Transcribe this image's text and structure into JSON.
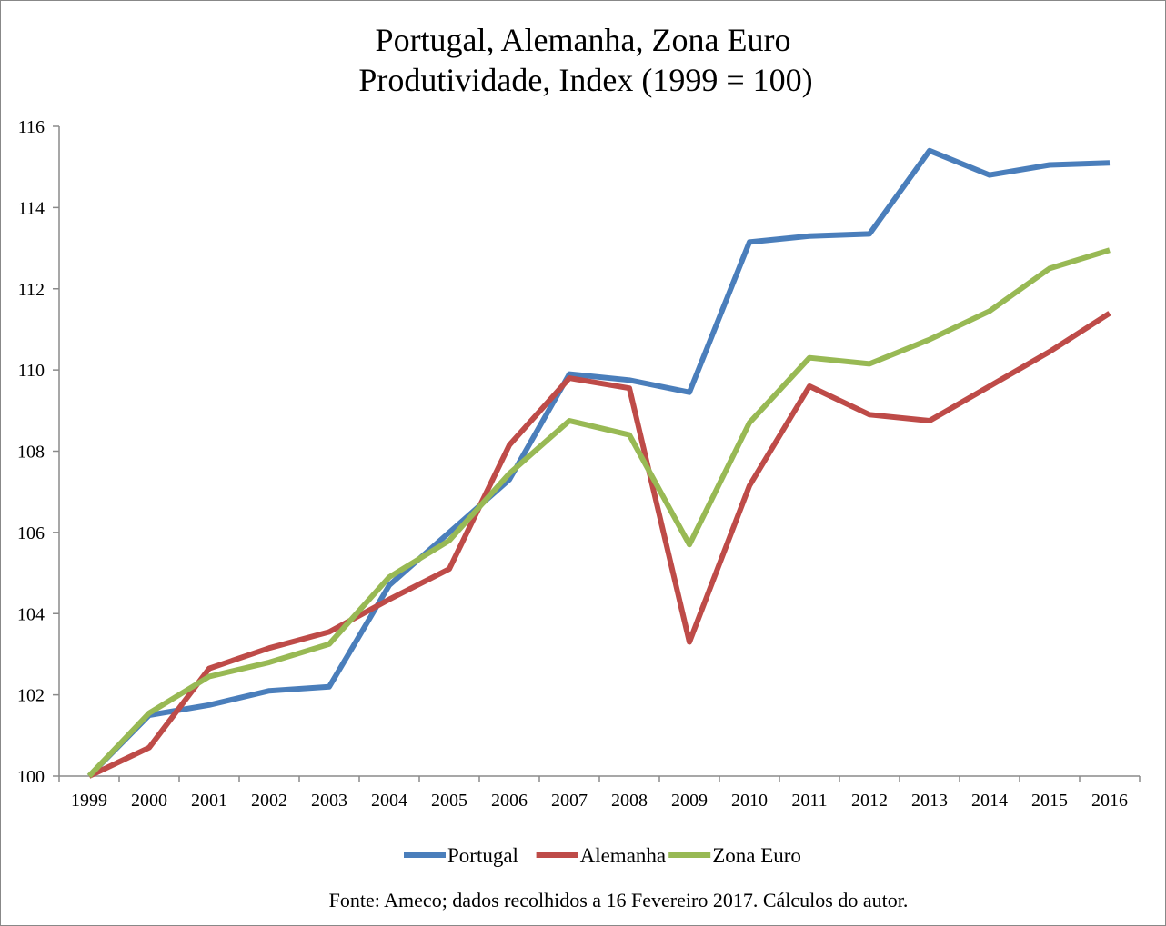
{
  "chart_data": {
    "type": "line",
    "title": "Portugal, Alemanha, Zona Euro",
    "subtitle": "Produtividade, Index (1999 = 100)",
    "xlabel": "",
    "ylabel": "",
    "categories": [
      "1999",
      "2000",
      "2001",
      "2002",
      "2003",
      "2004",
      "2005",
      "2006",
      "2007",
      "2008",
      "2009",
      "2010",
      "2011",
      "2012",
      "2013",
      "2014",
      "2015",
      "2016"
    ],
    "yticks": [
      "100",
      "102",
      "104",
      "106",
      "108",
      "110",
      "112",
      "114",
      "116"
    ],
    "ylim": [
      100,
      116
    ],
    "grid": false,
    "legend_position": "bottom",
    "series": [
      {
        "name": "Portugal",
        "color": "#4a7ebb",
        "values": [
          100.0,
          101.5,
          101.75,
          102.1,
          102.2,
          104.7,
          106.0,
          107.3,
          109.9,
          109.75,
          109.45,
          113.15,
          113.3,
          113.35,
          115.4,
          114.8,
          115.05,
          115.1
        ]
      },
      {
        "name": "Alemanha",
        "color": "#be4b48",
        "values": [
          100.0,
          100.7,
          102.65,
          103.15,
          103.55,
          104.35,
          105.1,
          108.15,
          109.8,
          109.55,
          103.3,
          107.15,
          109.6,
          108.9,
          108.75,
          109.6,
          110.45,
          111.4
        ]
      },
      {
        "name": "Zona Euro",
        "color": "#98b954",
        "values": [
          100.0,
          101.55,
          102.45,
          102.8,
          103.25,
          104.9,
          105.8,
          107.45,
          108.75,
          108.4,
          105.7,
          108.7,
          110.3,
          110.15,
          110.75,
          111.45,
          112.5,
          112.95
        ]
      }
    ],
    "source": "Fonte: Ameco; dados recolhidos a 16 Fevereiro 2017. Cálculos do autor."
  }
}
